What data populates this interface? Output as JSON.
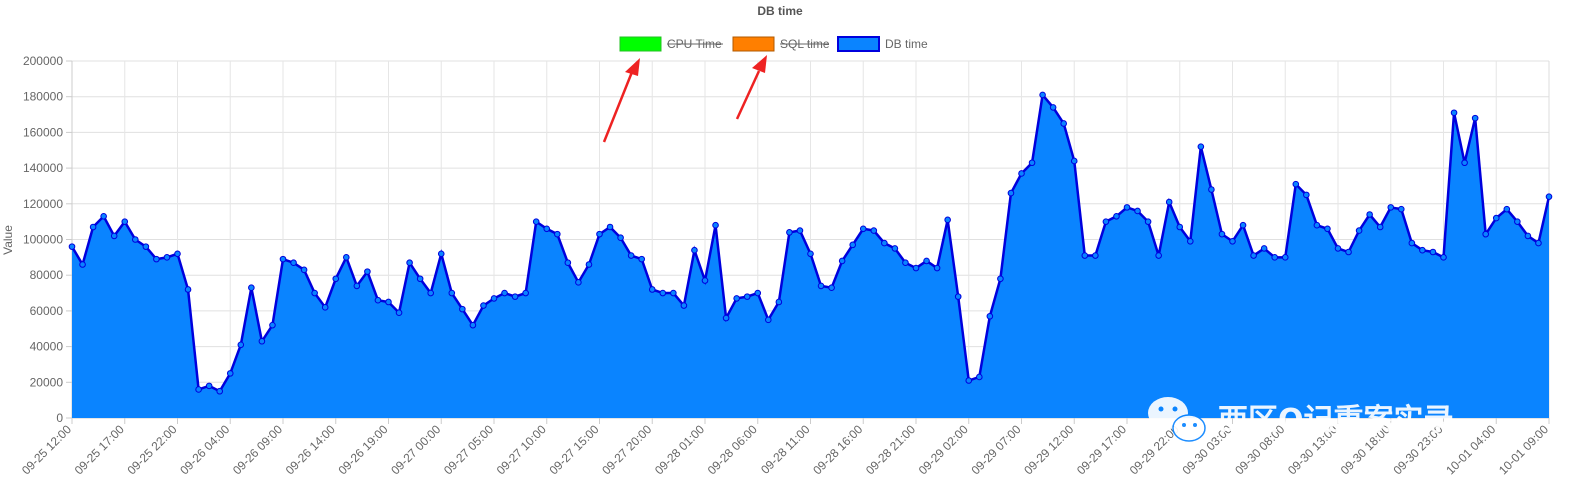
{
  "chart_data": {
    "type": "area",
    "title": "DB time",
    "ylabel": "Value",
    "ylim": [
      0,
      200000
    ],
    "yticks": [
      0,
      20000,
      40000,
      60000,
      80000,
      100000,
      120000,
      140000,
      160000,
      180000,
      200000
    ],
    "grid": true,
    "legend_position": "top",
    "legend": [
      {
        "name": "CPU Time",
        "color": "#00ff00",
        "hidden": true
      },
      {
        "name": "SQL time",
        "color": "#ff7f00",
        "hidden": true
      },
      {
        "name": "DB time",
        "color": "#0a84ff",
        "border": "#0000dd",
        "hidden": false
      }
    ],
    "x_tick_labels": [
      "09-25 12:00",
      "09-25 17:00",
      "09-25 22:00",
      "09-26 04:00",
      "09-26 09:00",
      "09-26 14:00",
      "09-26 19:00",
      "09-27 00:00",
      "09-27 05:00",
      "09-27 10:00",
      "09-27 15:00",
      "09-27 20:00",
      "09-28 01:00",
      "09-28 06:00",
      "09-28 11:00",
      "09-28 16:00",
      "09-28 21:00",
      "09-29 02:00",
      "09-29 07:00",
      "09-29 12:00",
      "09-29 17:00",
      "09-29 22:00",
      "09-30 03:00",
      "09-30 08:00",
      "09-30 13:00",
      "09-30 18:00",
      "09-30 23:00",
      "10-01 04:00",
      "10-01 09:00"
    ],
    "series": [
      {
        "name": "DB time",
        "values": [
          96000,
          86000,
          107000,
          113000,
          102000,
          110000,
          100000,
          96000,
          89000,
          90000,
          92000,
          72000,
          16000,
          18000,
          15000,
          25000,
          41000,
          73000,
          43000,
          52000,
          89000,
          87000,
          83000,
          70000,
          62000,
          78000,
          90000,
          74000,
          82000,
          66000,
          65000,
          59000,
          87000,
          78000,
          70000,
          92000,
          70000,
          61000,
          52000,
          63000,
          67000,
          70000,
          68000,
          70000,
          110000,
          106000,
          103000,
          87000,
          76000,
          86000,
          103000,
          107000,
          101000,
          91000,
          89000,
          72000,
          70000,
          70000,
          63000,
          94000,
          77000,
          108000,
          56000,
          67000,
          68000,
          70000,
          55000,
          65000,
          104000,
          105000,
          92000,
          74000,
          73000,
          88000,
          97000,
          106000,
          105000,
          98000,
          95000,
          87000,
          84000,
          88000,
          84000,
          111000,
          68000,
          21000,
          23000,
          57000,
          78000,
          126000,
          137000,
          143000,
          181000,
          174000,
          165000,
          144000,
          91000,
          91000,
          110000,
          113000,
          118000,
          116000,
          110000,
          91000,
          121000,
          107000,
          99000,
          152000,
          128000,
          103000,
          99000,
          108000,
          91000,
          95000,
          90000,
          90000,
          131000,
          125000,
          108000,
          106000,
          95000,
          93000,
          105000,
          114000,
          107000,
          118000,
          117000,
          98000,
          94000,
          93000,
          90000,
          171000,
          143000,
          168000,
          103000,
          112000,
          117000,
          110000,
          102000,
          98000,
          124000
        ]
      }
    ],
    "annotations": [
      "arrow pointing to CPU Time legend",
      "arrow pointing to SQL time legend"
    ],
    "watermark": {
      "text": "西区O记重案实录",
      "icon": "wechat-icon"
    }
  }
}
